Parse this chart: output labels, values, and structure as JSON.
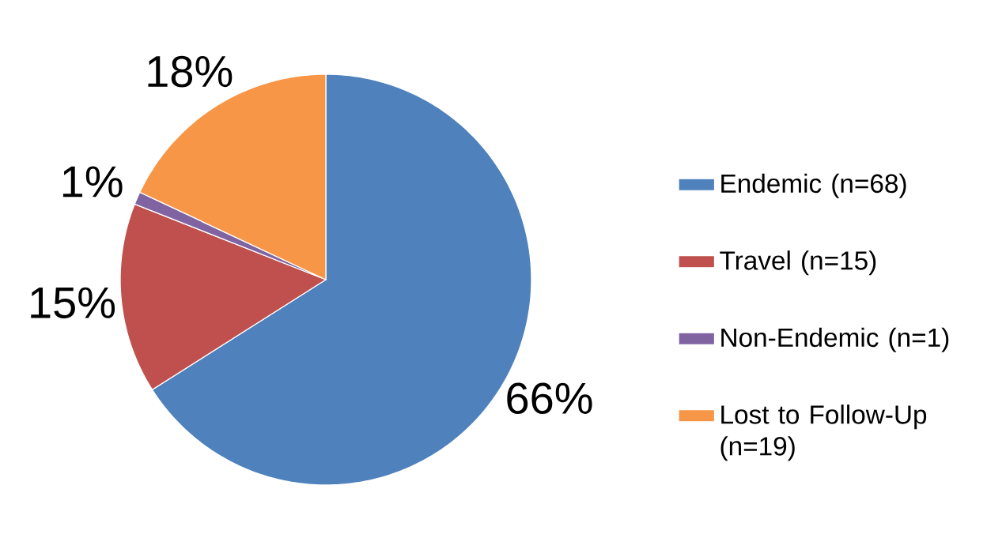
{
  "chart_data": {
    "type": "pie",
    "categories": [
      "Endemic (n=68)",
      "Travel (n=15)",
      "Non-Endemic (n=1)",
      "Lost to Follow-Up (n=19)"
    ],
    "values": [
      66,
      15,
      1,
      18
    ],
    "value_labels": [
      "66%",
      "15%",
      "1%",
      "18%"
    ],
    "colors": [
      "#4f81bd",
      "#c0504d",
      "#8064a2",
      "#f79646"
    ],
    "legend": "right"
  }
}
